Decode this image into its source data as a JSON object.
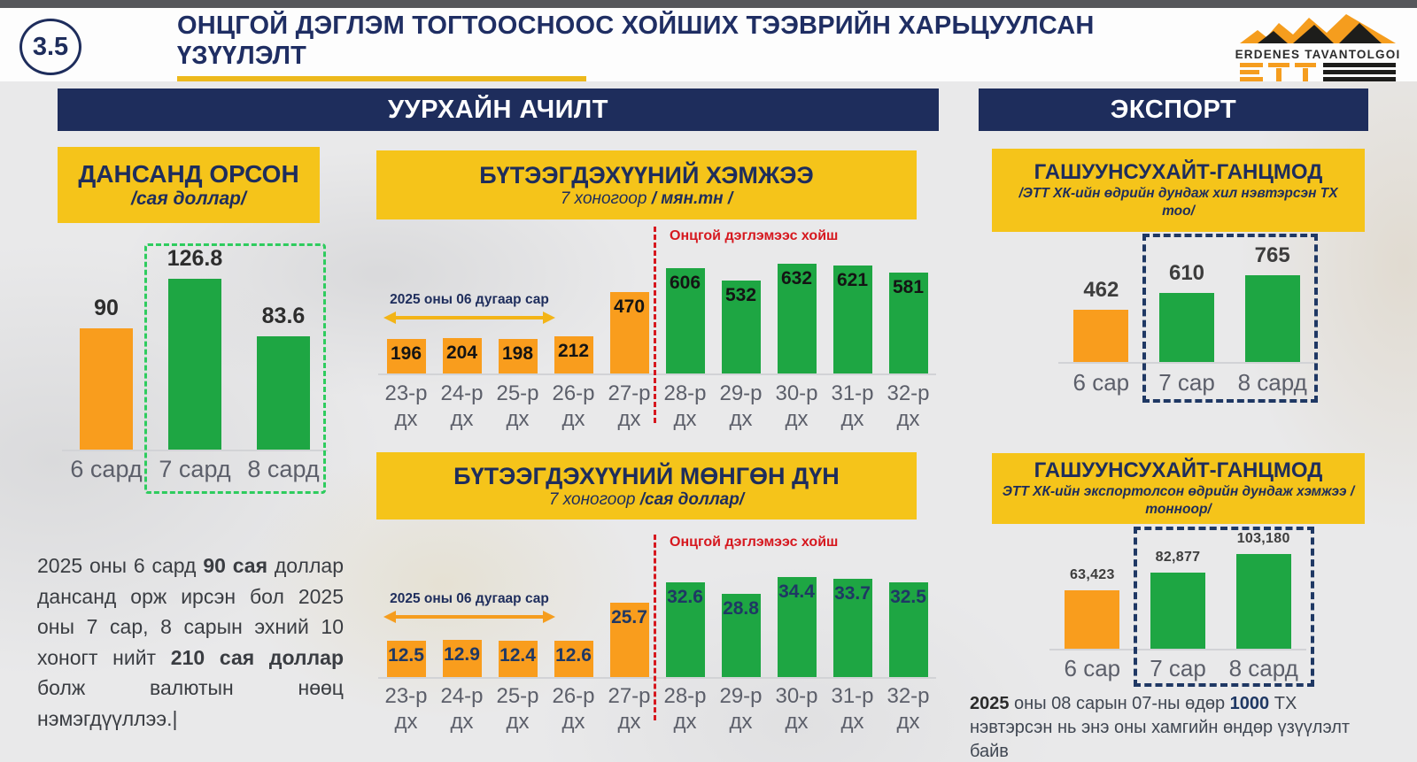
{
  "slide": {
    "badge": "3.5",
    "title_lines": [
      "ОНЦГОЙ ДЭГЛЭМ ТОГТООСНООС ХОЙШИХ ТЭЭВРИЙН ХАРЬЦУУЛСАН",
      "ҮЗҮҮЛЭЛТ"
    ],
    "logo": {
      "company": "ERDENES TAVANTOLGOI"
    },
    "banners": {
      "mining": "УУРХАЙН АЧИЛТ",
      "export": "ЭКСПОРТ"
    }
  },
  "colors": {
    "navy": "#1e2d5c",
    "yellow": "#f5c41a",
    "orange_bar": "#f99d1d",
    "green_bar": "#1ea643",
    "red_accent": "#d6181f",
    "green_dash": "#2ecc5e",
    "navy_dash": "#1f3864"
  },
  "notes": {
    "left": [
      {
        "t": "2025 оны 6 сард "
      },
      {
        "t": "90 сая",
        "b": true
      },
      {
        "t": " доллар дансанд орж ирсэн бол 2025 оны 7 сар, 8 сарын эхний 10 хоногт нийт "
      },
      {
        "t": "210 сая доллар",
        "b": true
      },
      {
        "t": " болж валютын нөөц нэмэгдүүллээ.|"
      }
    ],
    "right": [
      {
        "t": "2025",
        "b": true,
        "c": "#2b2b2b"
      },
      {
        "t": " оны 08 сарын 07-ны өдөр "
      },
      {
        "t": "1000",
        "b": true,
        "c": "#1f3864"
      },
      {
        "t": " ТХ нэвтэрсэн нь энэ оны хамгийн өндөр үзүүлэлт байв"
      }
    ]
  },
  "chart_data": [
    {
      "id": "deposits",
      "type": "bar",
      "title": "ДАНСАНД ОРСОН",
      "subtitle": "/сая доллар/",
      "categories": [
        "6 сард",
        "7 сард",
        "8 сард"
      ],
      "values": [
        90,
        126.8,
        83.6
      ],
      "value_labels": [
        "90",
        "126.8",
        "83.6"
      ],
      "bar_colors": [
        "orange",
        "green",
        "green"
      ],
      "highlight_box": {
        "categories": [
          "7 сард",
          "8 сард"
        ],
        "style": "green-dashed"
      }
    },
    {
      "id": "volume",
      "type": "bar",
      "title": "БҮТЭЭГДЭХҮҮНИЙ ХЭМЖЭЭ",
      "subtitle_segments": [
        {
          "t": "7 хоногоор ",
          "i": true
        },
        {
          "t": "/ мян.тн /",
          "b": true,
          "i": true
        }
      ],
      "categories": [
        "23-р дх",
        "24-р дх",
        "25-р дх",
        "26-р дх",
        "27-р дх",
        "28-р дх",
        "29-р дх",
        "30-р дх",
        "31-р дх",
        "32-р дх"
      ],
      "values": [
        196,
        204,
        198,
        212,
        470,
        606,
        532,
        632,
        621,
        581
      ],
      "value_labels": [
        "196",
        "204",
        "198",
        "212",
        "470",
        "606",
        "532",
        "632",
        "621",
        "581"
      ],
      "bar_colors": [
        "orange",
        "orange",
        "orange",
        "orange",
        "orange",
        "green",
        "green",
        "green",
        "green",
        "green"
      ],
      "annotations": {
        "pre_period_label": "2025 оны 06 дугаар сар",
        "divider_label": "Онцгой дэглэмээс хойш",
        "divider_after_index": 4
      }
    },
    {
      "id": "revenue",
      "type": "bar",
      "title": "БҮТЭЭГДЭХҮҮНИЙ МӨНГӨН ДҮН",
      "subtitle_segments": [
        {
          "t": "7 хоногоор ",
          "i": true
        },
        {
          "t": "/сая доллар/",
          "b": true,
          "i": true
        }
      ],
      "categories": [
        "23-р дх",
        "24-р дх",
        "25-р дх",
        "26-р дх",
        "27-р дх",
        "28-р дх",
        "29-р дх",
        "30-р дх",
        "31-р дх",
        "32-р дх"
      ],
      "values": [
        12.5,
        12.9,
        12.4,
        12.6,
        25.7,
        32.6,
        28.8,
        34.4,
        33.7,
        32.5
      ],
      "value_labels": [
        "12.5",
        "12.9",
        "12.4",
        "12.6",
        "25.7",
        "32.6",
        "28.8",
        "34.4",
        "33.7",
        "32.5"
      ],
      "bar_colors": [
        "orange",
        "orange",
        "orange",
        "orange",
        "orange",
        "green",
        "green",
        "green",
        "green",
        "green"
      ],
      "annotations": {
        "pre_period_label": "2025 оны 06 дугаар сар",
        "divider_label": "Онцгой дэглэмээс хойш",
        "divider_after_index": 4
      }
    },
    {
      "id": "border_trucks",
      "type": "bar",
      "title": "ГАШУУНСУХАЙТ-ГАНЦМОД",
      "subtitle": "/ЭТТ ХК-ийн өдрийн дундаж хил нэвтэрсэн ТХ тоо/",
      "categories": [
        "6 сар",
        "7 сар",
        "8 сард"
      ],
      "values": [
        462,
        610,
        765
      ],
      "value_labels": [
        "462",
        "610",
        "765"
      ],
      "bar_colors": [
        "orange",
        "green",
        "green"
      ],
      "highlight_box": {
        "categories": [
          "7 сар",
          "8 сард"
        ],
        "style": "navy-dashed"
      }
    },
    {
      "id": "export_volume",
      "type": "bar",
      "title": "ГАШУУНСУХАЙТ-ГАНЦМОД",
      "subtitle": "ЭТТ ХК-ийн экспортолсон өдрийн дундаж хэмжээ /тонноор/",
      "categories": [
        "6 сар",
        "7 сар",
        "8 сард"
      ],
      "values": [
        63423,
        82877,
        103180
      ],
      "value_labels": [
        "63,423",
        "82,877",
        "103,180"
      ],
      "bar_colors": [
        "orange",
        "green",
        "green"
      ],
      "highlight_box": {
        "categories": [
          "7 сар",
          "8 сард"
        ],
        "style": "navy-dashed"
      }
    }
  ]
}
